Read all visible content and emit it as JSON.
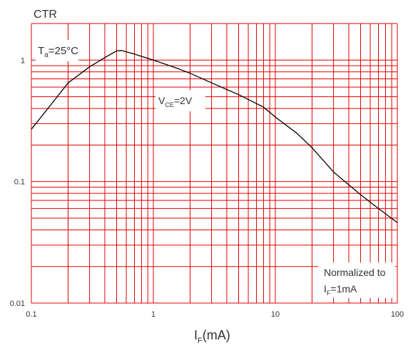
{
  "chart_data": {
    "type": "line",
    "title": "CTR",
    "xlabel": "I_F(mA)",
    "xlabel_main": "I",
    "xlabel_sub": "F",
    "xlabel_rest": "(mA)",
    "ylabel": "CTR",
    "xscale": "log",
    "yscale": "log",
    "xlim": [
      0.1,
      100
    ],
    "ylim": [
      0.01,
      2
    ],
    "grid": true,
    "grid_color": "#e00000",
    "line_color": "#000000",
    "x_tick_labels": [
      "0.1",
      "1",
      "10",
      "100"
    ],
    "x_tick_values": [
      0.1,
      1,
      10,
      100
    ],
    "y_tick_labels": [
      "1",
      "0.1",
      "0.01"
    ],
    "y_tick_values": [
      1,
      0.1,
      0.01
    ],
    "series": [
      {
        "x": [
          0.1,
          0.15,
          0.2,
          0.3,
          0.4,
          0.5,
          0.55,
          0.7,
          1,
          1.5,
          2,
          3,
          5,
          8,
          10,
          15,
          20,
          30,
          50,
          70,
          100
        ],
        "y": [
          0.27,
          0.45,
          0.65,
          0.88,
          1.05,
          1.19,
          1.2,
          1.12,
          1.0,
          0.87,
          0.78,
          0.65,
          0.52,
          0.41,
          0.34,
          0.25,
          0.19,
          0.12,
          0.078,
          0.06,
          0.046
        ]
      }
    ],
    "annotations": {
      "temp": {
        "main": "T",
        "sub": "a",
        "rest": "=25°C"
      },
      "vce": {
        "main": "V",
        "sub": "CE",
        "rest": "=2V"
      },
      "norm_line1": "Normalized to",
      "norm_line2": {
        "main": "I",
        "sub": "F",
        "rest": "=1mA"
      }
    }
  }
}
